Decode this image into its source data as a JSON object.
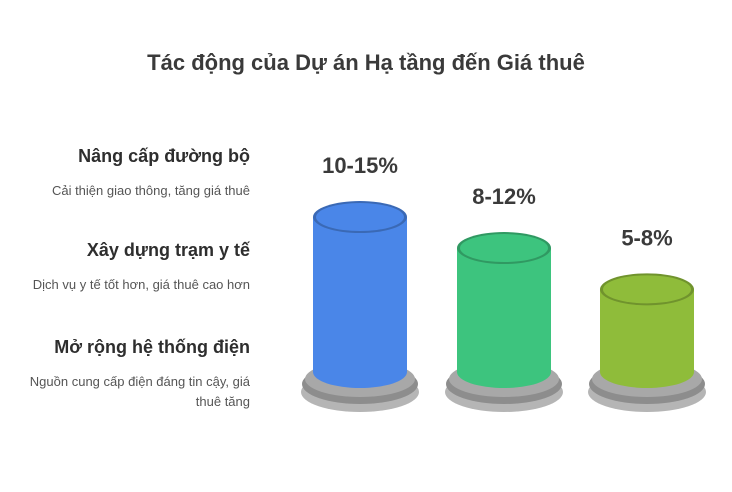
{
  "chart_data": {
    "type": "bar",
    "title": "Tác động của Dự án Hạ tầng đến Giá thuê",
    "categories": [
      "Nâng cấp đường bộ",
      "Xây dựng trạm y tế",
      "Mở rộng hệ thống điện"
    ],
    "descriptions": [
      "Cải thiện giao thông, tăng giá thuê",
      "Dịch vụ y tế tốt hơn, giá thuê cao hơn",
      "Nguồn cung cấp điện đáng tin cậy, giá thuê tăng"
    ],
    "value_labels": [
      "10-15%",
      "8-12%",
      "5-8%"
    ],
    "values": [
      15,
      12,
      8
    ],
    "colors": [
      "#4a86e8",
      "#3dc47e",
      "#8fbc3a"
    ],
    "legend_position": "left"
  }
}
